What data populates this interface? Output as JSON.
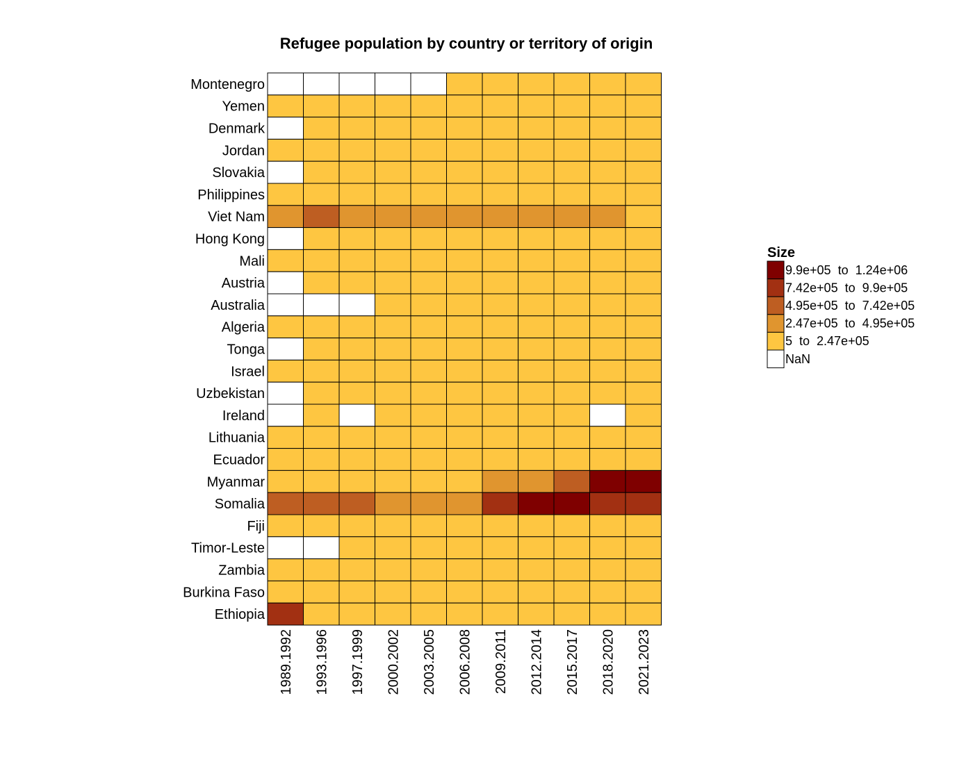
{
  "chart_data": {
    "type": "heatmap",
    "title": "Refugee population by country or territory of origin",
    "xlabel": "",
    "ylabel": "",
    "columns": [
      "1989.1992",
      "1993.1996",
      "1997.1999",
      "2000.2002",
      "2003.2005",
      "2006.2008",
      "2009.2011",
      "2012.2014",
      "2015.2017",
      "2018.2020",
      "2021.2023"
    ],
    "rows": [
      "Montenegro",
      "Yemen",
      "Denmark",
      "Jordan",
      "Slovakia",
      "Philippines",
      "Viet Nam",
      "Hong Kong",
      "Mali",
      "Austria",
      "Australia",
      "Algeria",
      "Tonga",
      "Israel",
      "Uzbekistan",
      "Ireland",
      "Lithuania",
      "Ecuador",
      "Myanmar",
      "Somalia",
      "Fiji",
      "Timor-Leste",
      "Zambia",
      "Burkina Faso",
      "Ethiopia"
    ],
    "values": [
      [
        null,
        null,
        null,
        null,
        null,
        1,
        1,
        1,
        1,
        1,
        1
      ],
      [
        1,
        1,
        1,
        1,
        1,
        1,
        1,
        1,
        1,
        1,
        1
      ],
      [
        null,
        1,
        1,
        1,
        1,
        1,
        1,
        1,
        1,
        1,
        1
      ],
      [
        1,
        1,
        1,
        1,
        1,
        1,
        1,
        1,
        1,
        1,
        1
      ],
      [
        null,
        1,
        1,
        1,
        1,
        1,
        1,
        1,
        1,
        1,
        1
      ],
      [
        1,
        1,
        1,
        1,
        1,
        1,
        1,
        1,
        1,
        1,
        1
      ],
      [
        2,
        3,
        2,
        2,
        2,
        2,
        2,
        2,
        2,
        2,
        1
      ],
      [
        null,
        1,
        1,
        1,
        1,
        1,
        1,
        1,
        1,
        1,
        1
      ],
      [
        1,
        1,
        1,
        1,
        1,
        1,
        1,
        1,
        1,
        1,
        1
      ],
      [
        null,
        1,
        1,
        1,
        1,
        1,
        1,
        1,
        1,
        1,
        1
      ],
      [
        null,
        null,
        null,
        1,
        1,
        1,
        1,
        1,
        1,
        1,
        1
      ],
      [
        1,
        1,
        1,
        1,
        1,
        1,
        1,
        1,
        1,
        1,
        1
      ],
      [
        null,
        1,
        1,
        1,
        1,
        1,
        1,
        1,
        1,
        1,
        1
      ],
      [
        1,
        1,
        1,
        1,
        1,
        1,
        1,
        1,
        1,
        1,
        1
      ],
      [
        null,
        1,
        1,
        1,
        1,
        1,
        1,
        1,
        1,
        1,
        1
      ],
      [
        null,
        1,
        null,
        1,
        1,
        1,
        1,
        1,
        1,
        null,
        1
      ],
      [
        1,
        1,
        1,
        1,
        1,
        1,
        1,
        1,
        1,
        1,
        1
      ],
      [
        1,
        1,
        1,
        1,
        1,
        1,
        1,
        1,
        1,
        1,
        1
      ],
      [
        1,
        1,
        1,
        1,
        1,
        1,
        2,
        2,
        3,
        5,
        5
      ],
      [
        3,
        3,
        3,
        2,
        2,
        2,
        4,
        5,
        5,
        4,
        4
      ],
      [
        1,
        1,
        1,
        1,
        1,
        1,
        1,
        1,
        1,
        1,
        1
      ],
      [
        null,
        null,
        1,
        1,
        1,
        1,
        1,
        1,
        1,
        1,
        1
      ],
      [
        1,
        1,
        1,
        1,
        1,
        1,
        1,
        1,
        1,
        1,
        1
      ],
      [
        1,
        1,
        1,
        1,
        1,
        1,
        1,
        1,
        1,
        1,
        1
      ],
      [
        4,
        1,
        1,
        1,
        1,
        1,
        1,
        1,
        1,
        1,
        1
      ]
    ],
    "value_encoding": "bin index into legend.bins (1 = lowest bin, 5 = highest bin, null = NaN)",
    "legend": {
      "title": "Size",
      "position": "right",
      "bins": [
        {
          "index": 5,
          "label": "9.9e+05  to  1.24e+06",
          "color": "#7f0000"
        },
        {
          "index": 4,
          "label": "7.42e+05  to  9.9e+05",
          "color": "#a23012"
        },
        {
          "index": 3,
          "label": "4.95e+05  to  7.42e+05",
          "color": "#be5e22"
        },
        {
          "index": 2,
          "label": "2.47e+05  to  4.95e+05",
          "color": "#e0952f"
        },
        {
          "index": 1,
          "label": "5  to  2.47e+05",
          "color": "#fec641"
        },
        {
          "index": null,
          "label": "NaN",
          "color": "#ffffff"
        }
      ]
    },
    "grid": true
  }
}
